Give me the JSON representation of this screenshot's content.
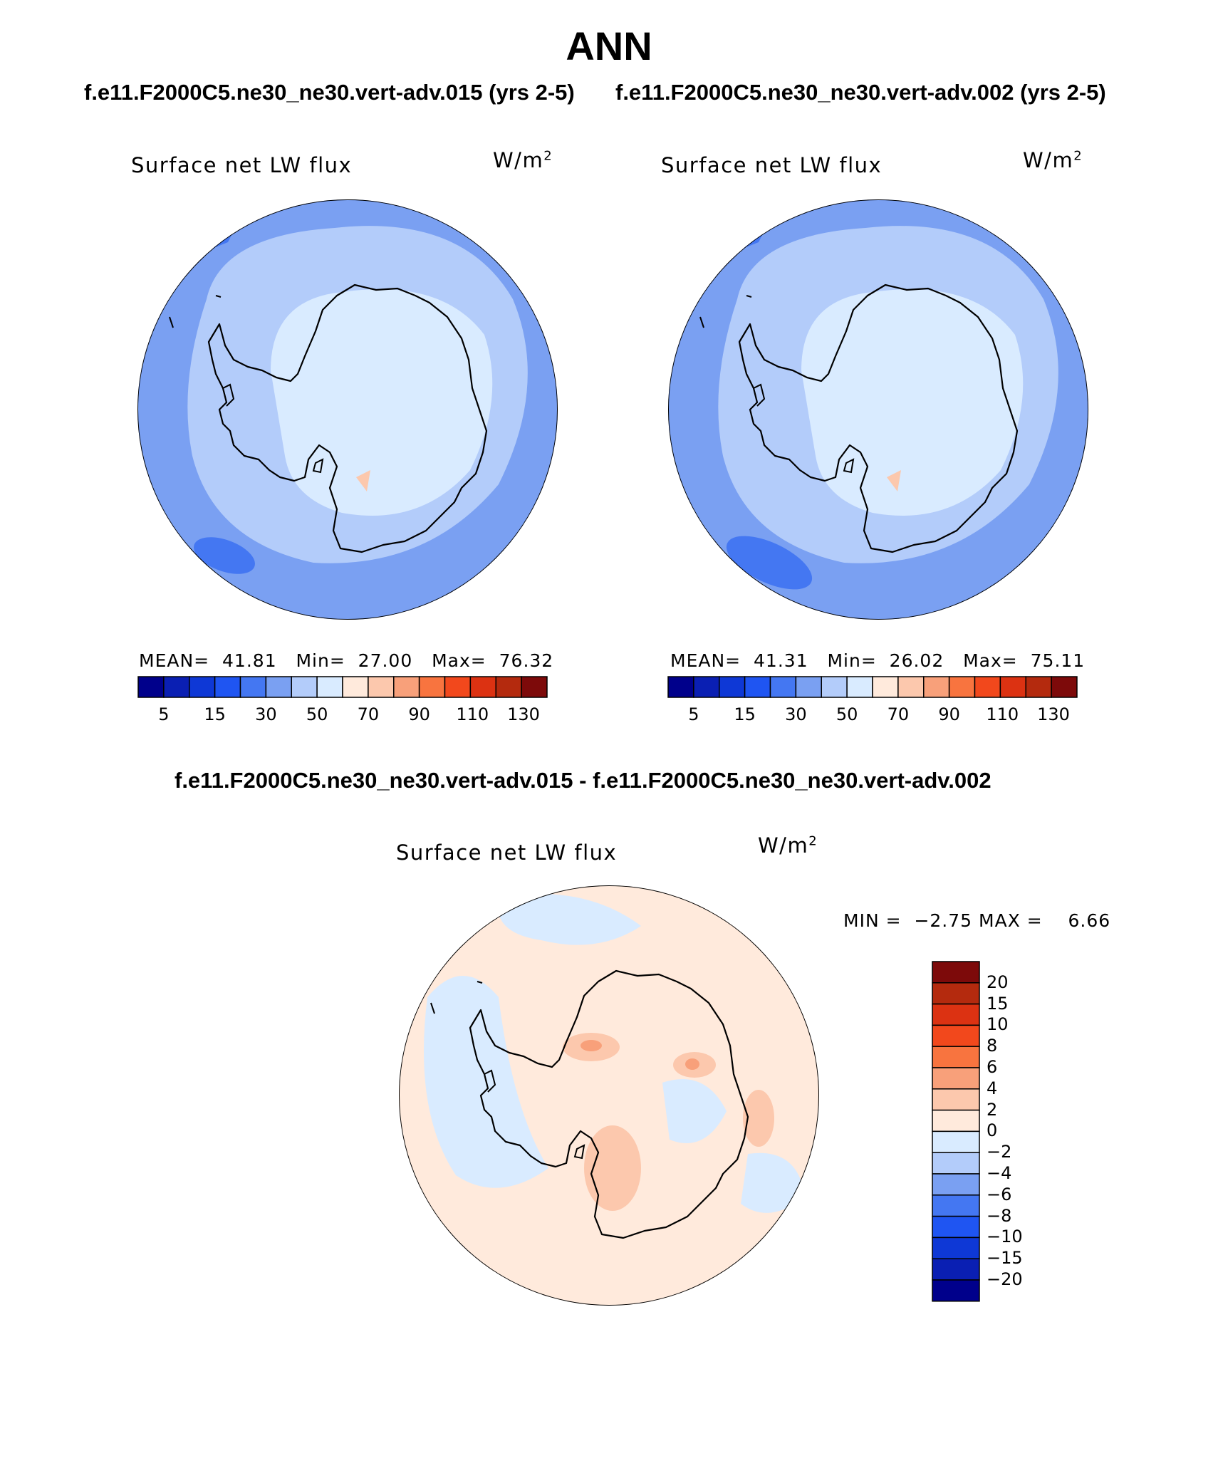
{
  "title": "ANN",
  "panels": [
    {
      "case_header": "f.e11.F2000C5.ne30_ne30.vert-adv.015 (yrs 2-5)",
      "variable": "Surface net LW flux",
      "units_base": "W/m",
      "units_exp": "2",
      "mean_label": "MEAN=",
      "mean": "41.81",
      "min_label": "Min=",
      "min": "27.00",
      "max_label": "Max=",
      "max": "76.32"
    },
    {
      "case_header": "f.e11.F2000C5.ne30_ne30.vert-adv.002 (yrs 2-5)",
      "variable": "Surface net LW flux",
      "units_base": "W/m",
      "units_exp": "2",
      "mean_label": "MEAN=",
      "mean": "41.31",
      "min_label": "Min=",
      "min": "26.02",
      "max_label": "Max=",
      "max": "75.11"
    }
  ],
  "abs_colorbar": {
    "colors": [
      "#00008b",
      "#0a1fb3",
      "#0e38d6",
      "#1f55f2",
      "#4477f2",
      "#7aa0f2",
      "#b3ccfa",
      "#d9ebff",
      "#ffeadc",
      "#fcc8ad",
      "#f8a07a",
      "#f8743f",
      "#f2481c",
      "#dc3212",
      "#b42a0e",
      "#7d0a0a"
    ],
    "ticks": [
      "5",
      "15",
      "30",
      "50",
      "70",
      "90",
      "110",
      "130"
    ]
  },
  "diff": {
    "header": "f.e11.F2000C5.ne30_ne30.vert-adv.015 - f.e11.F2000C5.ne30_ne30.vert-adv.002",
    "variable": "Surface net LW flux",
    "units_base": "W/m",
    "units_exp": "2",
    "min_label": "MIN =",
    "min": "−2.75",
    "max_label": "MAX =",
    "max": "6.66",
    "colorbar": {
      "colors_top_to_bottom": [
        "#7d0a0a",
        "#b42a0e",
        "#dc3212",
        "#f2481c",
        "#f8743f",
        "#f8a07a",
        "#fcc8ad",
        "#ffeadc",
        "#d9ebff",
        "#b3ccfa",
        "#7aa0f2",
        "#4477f2",
        "#1f55f2",
        "#0e38d6",
        "#0a1fb3",
        "#00008b"
      ],
      "labels_top_to_bottom": [
        "20",
        "15",
        "10",
        "8",
        "6",
        "4",
        "2",
        "0",
        "−2",
        "−4",
        "−6",
        "−8",
        "−10",
        "−15",
        "−20"
      ]
    }
  },
  "map_colors": {
    "ocean_base": "#7aa0f2",
    "outer_band": "#4477f2",
    "mid_band": "#b3ccfa",
    "inner_band": "#d9ebff",
    "warm_spot": "#fcc8ad",
    "diff_pos": "#ffeadc",
    "diff_neg": "#d9ebff",
    "diff_pos2": "#fcc8ad",
    "diff_neg2": "#b3ccfa",
    "diff_pos3": "#f8a07a",
    "coast": "#000000"
  }
}
